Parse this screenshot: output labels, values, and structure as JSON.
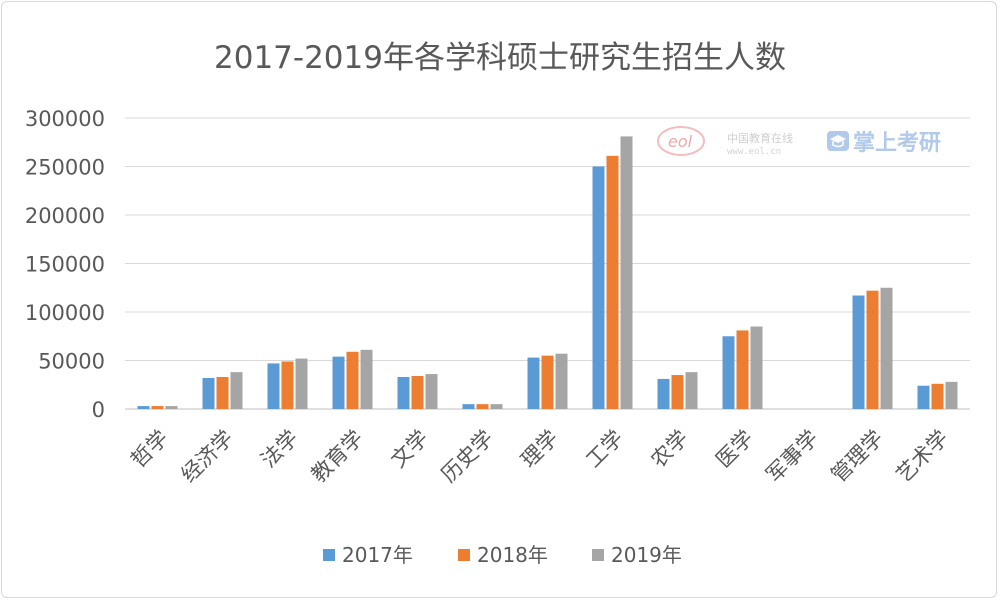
{
  "chart_data": {
    "type": "bar",
    "title": "2017-2019年各学科硕士研究生招生人数",
    "xlabel": "",
    "ylabel": "",
    "ylim": [
      0,
      300000
    ],
    "yticks": [
      "0",
      "50000",
      "100000",
      "150000",
      "200000",
      "250000",
      "300000"
    ],
    "grid": true,
    "legend_position": "bottom",
    "categories": [
      "哲学",
      "经济学",
      "法学",
      "教育学",
      "文学",
      "历史学",
      "理学",
      "工学",
      "农学",
      "医学",
      "军事学",
      "管理学",
      "艺术学"
    ],
    "series": [
      {
        "name": "2017年",
        "color": "#5b9bd5",
        "values": [
          3000,
          32000,
          47000,
          54000,
          33000,
          5000,
          53000,
          250000,
          31000,
          75000,
          0,
          117000,
          24000
        ]
      },
      {
        "name": "2018年",
        "color": "#ed7d31",
        "values": [
          3000,
          33000,
          49000,
          59000,
          34000,
          5000,
          55000,
          261000,
          35000,
          81000,
          0,
          122000,
          26000
        ]
      },
      {
        "name": "2019年",
        "color": "#a5a5a5",
        "values": [
          3000,
          38000,
          52000,
          61000,
          36000,
          5000,
          57000,
          281000,
          38000,
          85000,
          0,
          125000,
          28000
        ]
      }
    ]
  },
  "watermark": {
    "logo": "eol",
    "site_name": "中国教育在线",
    "site_url": "www.eol.cn",
    "brand": "掌上考研",
    "brand_icon": "graduation-cap-icon"
  }
}
